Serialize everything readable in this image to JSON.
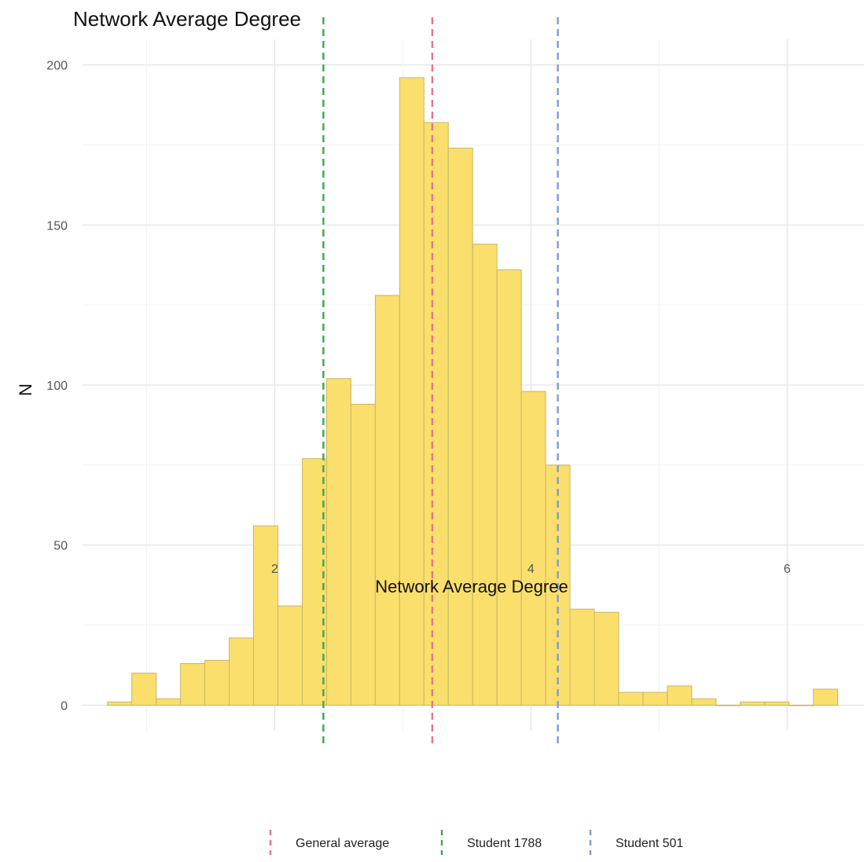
{
  "chart_data": {
    "type": "bar",
    "title": "Network Average Degree",
    "xlabel": "Network Average Degree",
    "ylabel": "N",
    "xlim": [
      0.5,
      6.6
    ],
    "ylim": [
      -8,
      208
    ],
    "x_ticks": [
      2,
      4,
      6
    ],
    "y_ticks": [
      0,
      50,
      100,
      150,
      200
    ],
    "x_minor_grid": [
      1,
      3,
      5
    ],
    "y_minor_grid": [
      25,
      75,
      125,
      175
    ],
    "grid": true,
    "bin_width": 0.19,
    "bins": [
      {
        "x": 0.79,
        "count": 1
      },
      {
        "x": 0.98,
        "count": 10
      },
      {
        "x": 1.17,
        "count": 2
      },
      {
        "x": 1.36,
        "count": 13
      },
      {
        "x": 1.55,
        "count": 14
      },
      {
        "x": 1.74,
        "count": 21
      },
      {
        "x": 1.93,
        "count": 56
      },
      {
        "x": 2.12,
        "count": 31
      },
      {
        "x": 2.31,
        "count": 77
      },
      {
        "x": 2.5,
        "count": 102
      },
      {
        "x": 2.69,
        "count": 94
      },
      {
        "x": 2.88,
        "count": 128
      },
      {
        "x": 3.07,
        "count": 196
      },
      {
        "x": 3.26,
        "count": 182
      },
      {
        "x": 3.45,
        "count": 174
      },
      {
        "x": 3.64,
        "count": 144
      },
      {
        "x": 3.83,
        "count": 136
      },
      {
        "x": 4.02,
        "count": 98
      },
      {
        "x": 4.21,
        "count": 75
      },
      {
        "x": 4.4,
        "count": 30
      },
      {
        "x": 4.59,
        "count": 29
      },
      {
        "x": 4.78,
        "count": 4
      },
      {
        "x": 4.97,
        "count": 4
      },
      {
        "x": 5.16,
        "count": 6
      },
      {
        "x": 5.35,
        "count": 2
      },
      {
        "x": 5.54,
        "count": 0
      },
      {
        "x": 5.73,
        "count": 1
      },
      {
        "x": 5.92,
        "count": 1
      },
      {
        "x": 6.11,
        "count": 0
      },
      {
        "x": 6.3,
        "count": 5
      }
    ],
    "reference_lines": [
      {
        "name": "General average",
        "x": 3.23,
        "color": "#e8748a"
      },
      {
        "name": "Student 1788",
        "x": 2.38,
        "color": "#3aa84d"
      },
      {
        "name": "Student 501",
        "x": 4.21,
        "color": "#7d9ad8"
      }
    ],
    "legend_position": "bottom",
    "bar_fill": "#fbdf6c",
    "bar_stroke": "#c8b466"
  }
}
